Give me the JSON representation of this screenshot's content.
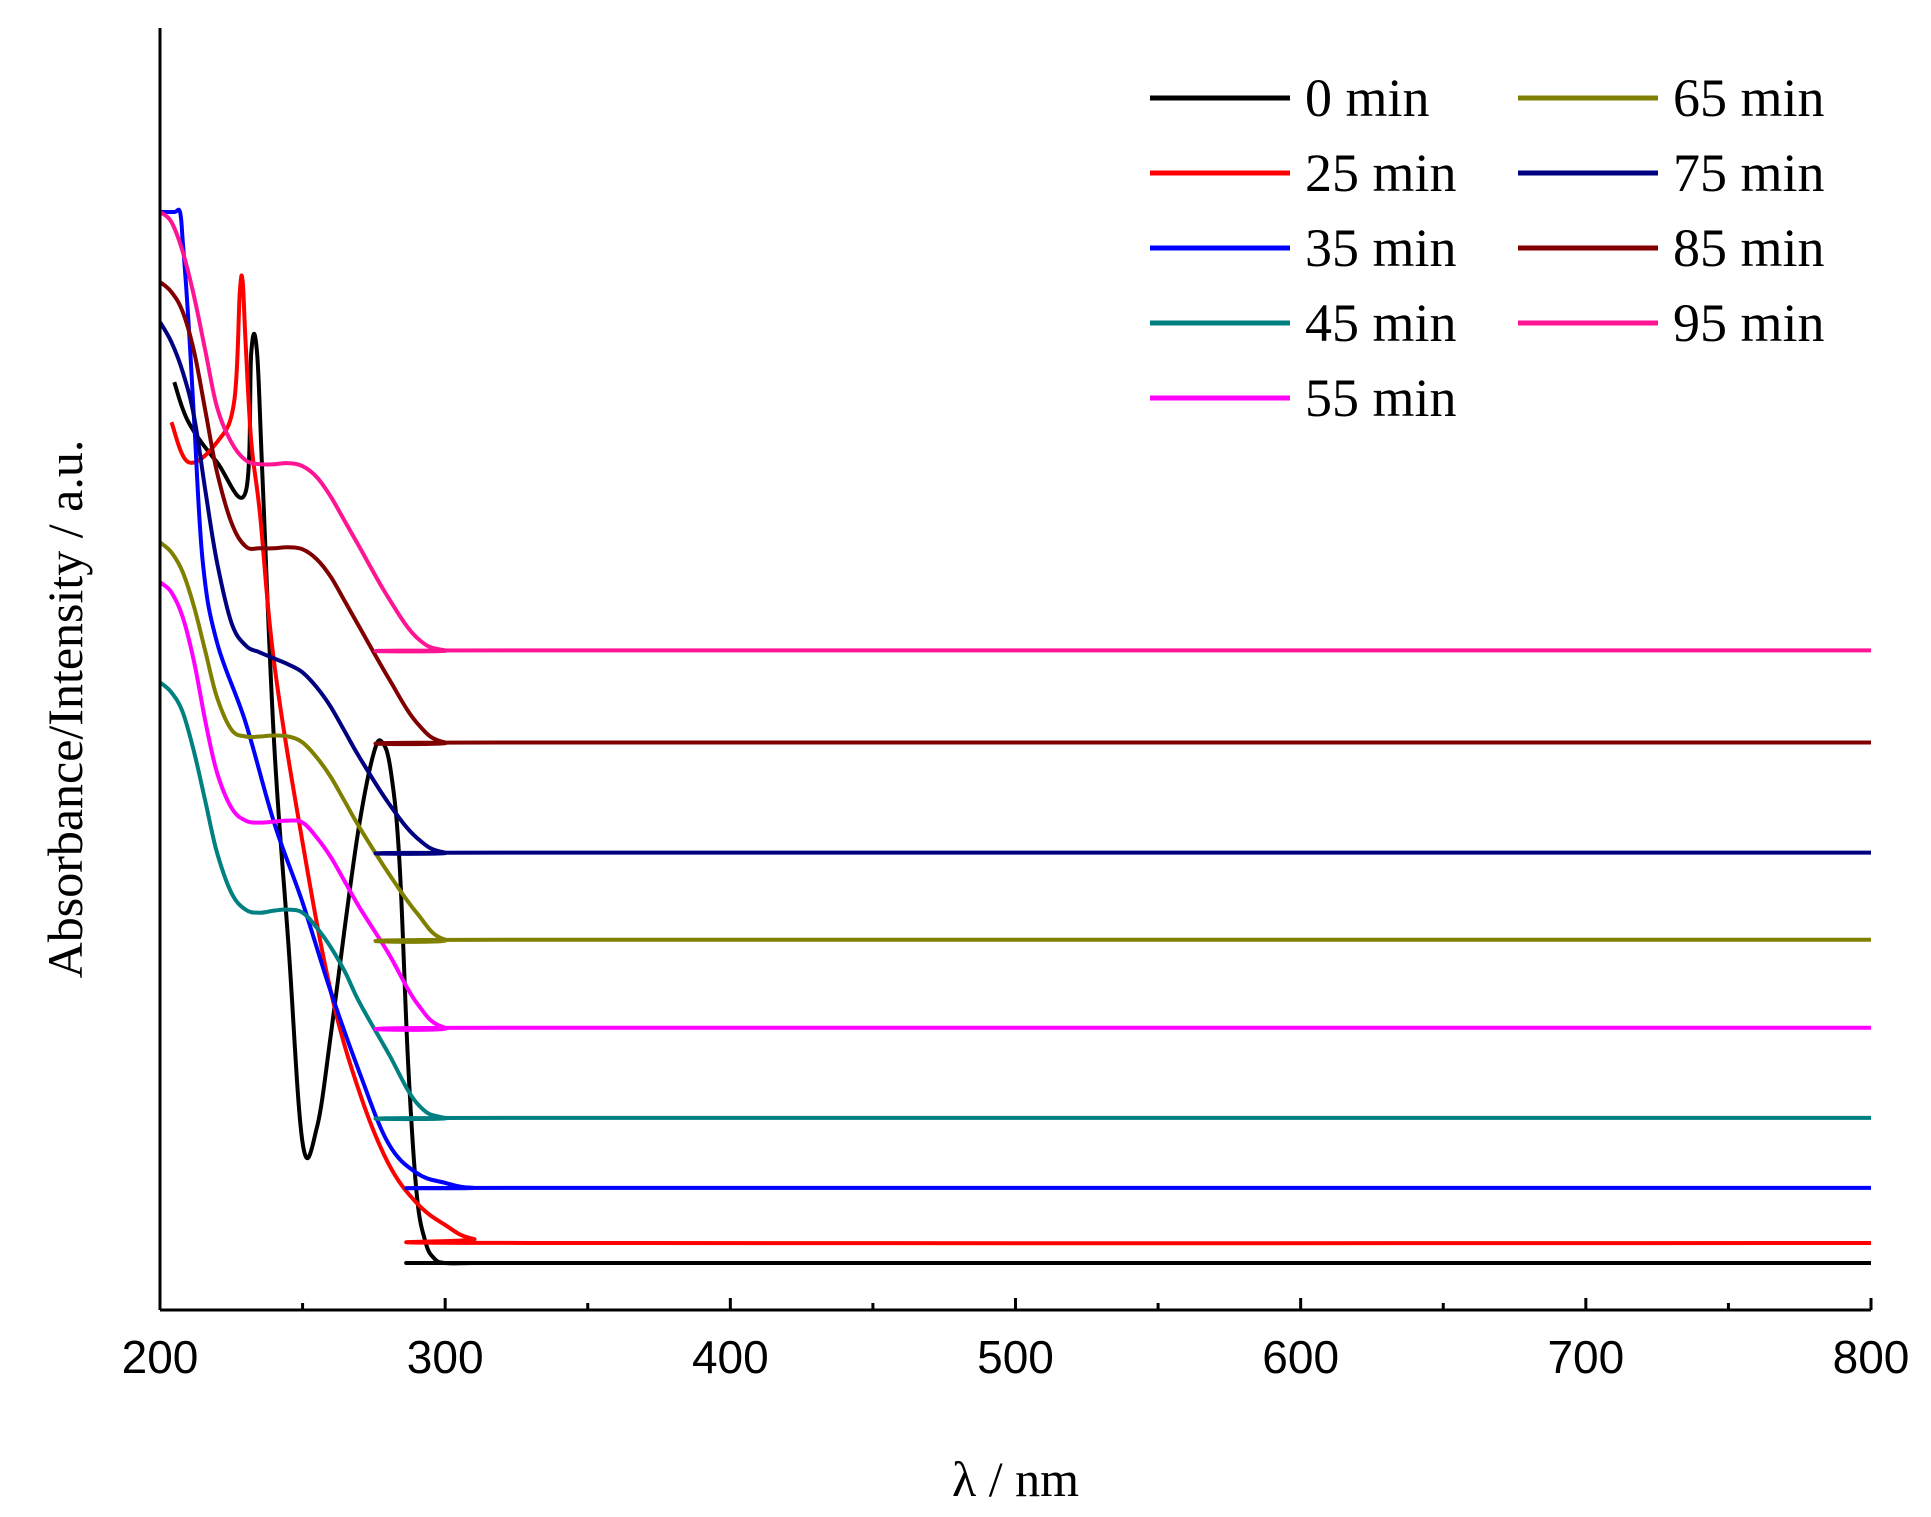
{
  "chart_data": {
    "type": "line",
    "title": "",
    "xlabel": "λ  /  nm",
    "ylabel": "Absorbance/Intensity / a.u.",
    "xlim": [
      200,
      800
    ],
    "ylim": [
      0,
      100
    ],
    "x_ticks": [
      "200",
      "300",
      "400",
      "500",
      "600",
      "700",
      "800"
    ],
    "y_ticks_labeled": false,
    "grid": false,
    "legend_position": "top-right",
    "series": [
      {
        "name": "0 min",
        "color": "#000000",
        "x": [
          205,
          210,
          220,
          230,
          232,
          234,
          236,
          240,
          245,
          250,
          255,
          260,
          265,
          270,
          275,
          278,
          281,
          284,
          287,
          290,
          293,
          296,
          300,
          310,
          330,
          800
        ],
        "y": [
          88,
          84,
          80,
          77,
          91,
          91,
          78,
          52,
          32,
          12,
          13.5,
          23,
          34,
          44,
          51,
          52,
          49,
          40,
          20,
          7,
          2.2,
          0.5,
          0,
          0,
          0,
          0
        ]
      },
      {
        "name": "25 min",
        "color": "#ff0000",
        "x": [
          204,
          210,
          220,
          226,
          228,
          229,
          230,
          232,
          235,
          240,
          250,
          260,
          270,
          280,
          290,
          300,
          310,
          330,
          800
        ],
        "y": [
          84,
          80,
          82,
          86,
          97,
          98,
          92,
          82,
          75,
          60,
          42,
          27,
          17,
          10,
          6,
          3.8,
          2.4,
          2.0,
          2.0
        ]
      },
      {
        "name": "35 min",
        "color": "#0000ff",
        "x": [
          200,
          205,
          207,
          208,
          210,
          212,
          215,
          220,
          230,
          240,
          250,
          260,
          270,
          280,
          290,
          300,
          310,
          330,
          800
        ],
        "y": [
          105,
          105,
          105,
          102,
          94,
          84,
          70,
          62,
          54,
          44,
          36,
          27,
          19,
          12,
          9,
          8,
          7.5,
          7.5,
          7.5
        ]
      },
      {
        "name": "45 min",
        "color": "#008080",
        "x": [
          200,
          204,
          208,
          212,
          216,
          220,
          225,
          230,
          235,
          240,
          245,
          250,
          255,
          260,
          265,
          270,
          280,
          290,
          300,
          320,
          800
        ],
        "y": [
          58,
          57,
          55,
          51,
          46,
          41,
          37,
          35.3,
          35,
          35.2,
          35.3,
          35,
          33.5,
          31.5,
          29,
          26,
          21,
          16,
          14.5,
          14.5,
          14.5
        ]
      },
      {
        "name": "55 min",
        "color": "#ff00ff",
        "x": [
          200,
          204,
          208,
          212,
          216,
          220,
          225,
          230,
          235,
          240,
          245,
          250,
          255,
          260,
          265,
          270,
          280,
          290,
          300,
          320,
          800
        ],
        "y": [
          68,
          67,
          64.5,
          60,
          54,
          49,
          45.5,
          44.2,
          44,
          44.1,
          44.2,
          44,
          42.5,
          40.5,
          38,
          35.5,
          31,
          26,
          23.5,
          23.5,
          23.5
        ]
      },
      {
        "name": "65 min",
        "color": "#808000",
        "x": [
          200,
          204,
          208,
          212,
          216,
          220,
          225,
          230,
          235,
          240,
          245,
          250,
          255,
          260,
          265,
          270,
          280,
          290,
          300,
          320,
          800
        ],
        "y": [
          72,
          71,
          69,
          65.5,
          61,
          56.5,
          53.3,
          52.6,
          52.6,
          52.7,
          52.6,
          52,
          50.5,
          48.5,
          46,
          43.5,
          39,
          35,
          32.3,
          32.3,
          32.3
        ]
      },
      {
        "name": "75 min",
        "color": "#000080",
        "x": [
          200,
          204,
          208,
          212,
          216,
          220,
          225,
          230,
          235,
          240,
          245,
          250,
          255,
          260,
          265,
          270,
          280,
          290,
          300,
          320,
          800
        ],
        "y": [
          94,
          92,
          89,
          84.5,
          77,
          70,
          64,
          61.7,
          61,
          60.4,
          59.8,
          59,
          57.5,
          55.5,
          53,
          50.5,
          46,
          42.5,
          41,
          41,
          41
        ]
      },
      {
        "name": "85 min",
        "color": "#800000",
        "x": [
          200,
          204,
          208,
          212,
          216,
          220,
          225,
          230,
          235,
          240,
          245,
          250,
          255,
          260,
          265,
          270,
          280,
          290,
          300,
          320,
          800
        ],
        "y": [
          98,
          97,
          95,
          91,
          85,
          79,
          74,
          71.6,
          71.4,
          71.4,
          71.5,
          71.3,
          70.3,
          68.5,
          66,
          63.5,
          58.5,
          54,
          52,
          52,
          52
        ]
      },
      {
        "name": "95 min",
        "color": "#ff1493",
        "x": [
          200,
          204,
          208,
          212,
          216,
          220,
          225,
          230,
          235,
          240,
          245,
          250,
          255,
          260,
          265,
          270,
          280,
          290,
          300,
          320,
          800
        ],
        "y": [
          105,
          104,
          101,
          96.5,
          91,
          85.5,
          82,
          80.2,
          79.8,
          79.8,
          79.9,
          79.6,
          78.5,
          76.5,
          74,
          71.5,
          66.5,
          62.5,
          61.2,
          61.2,
          61.2
        ]
      }
    ]
  }
}
